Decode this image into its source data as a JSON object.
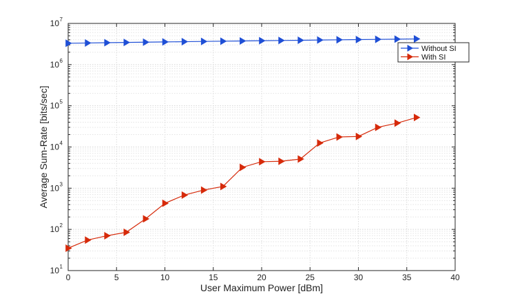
{
  "chart_data": {
    "type": "line",
    "title": "",
    "xlabel": "User Maximum Power [dBm]",
    "ylabel": "Average Sum-Rate [bits/sec]",
    "xlim": [
      0,
      40
    ],
    "ylim": [
      10,
      10000000
    ],
    "yscale": "log",
    "grid": true,
    "legend_position": "top-right",
    "x_ticks": [
      0,
      5,
      10,
      15,
      20,
      25,
      30,
      35,
      40
    ],
    "y_tick_exponents": [
      1,
      2,
      3,
      4,
      5,
      6,
      7
    ],
    "y_tick_base": "10",
    "x": [
      0,
      2,
      4,
      6,
      8,
      10,
      12,
      14,
      16,
      18,
      20,
      22,
      24,
      26,
      28,
      30,
      32,
      34,
      36
    ],
    "series": [
      {
        "name": "Without SI",
        "color": "#1f4fd6",
        "marker": "triangle-right",
        "values": [
          3300000,
          3350000,
          3400000,
          3450000,
          3500000,
          3550000,
          3600000,
          3650000,
          3700000,
          3750000,
          3800000,
          3850000,
          3900000,
          3950000,
          4000000,
          4050000,
          4100000,
          4150000,
          4200000
        ]
      },
      {
        "name": "With SI",
        "color": "#d62a0a",
        "marker": "triangle-right",
        "values": [
          35,
          55,
          70,
          85,
          180,
          430,
          680,
          900,
          1100,
          3200,
          4400,
          4500,
          5100,
          12500,
          17500,
          18000,
          30000,
          38000,
          52000
        ]
      }
    ]
  }
}
